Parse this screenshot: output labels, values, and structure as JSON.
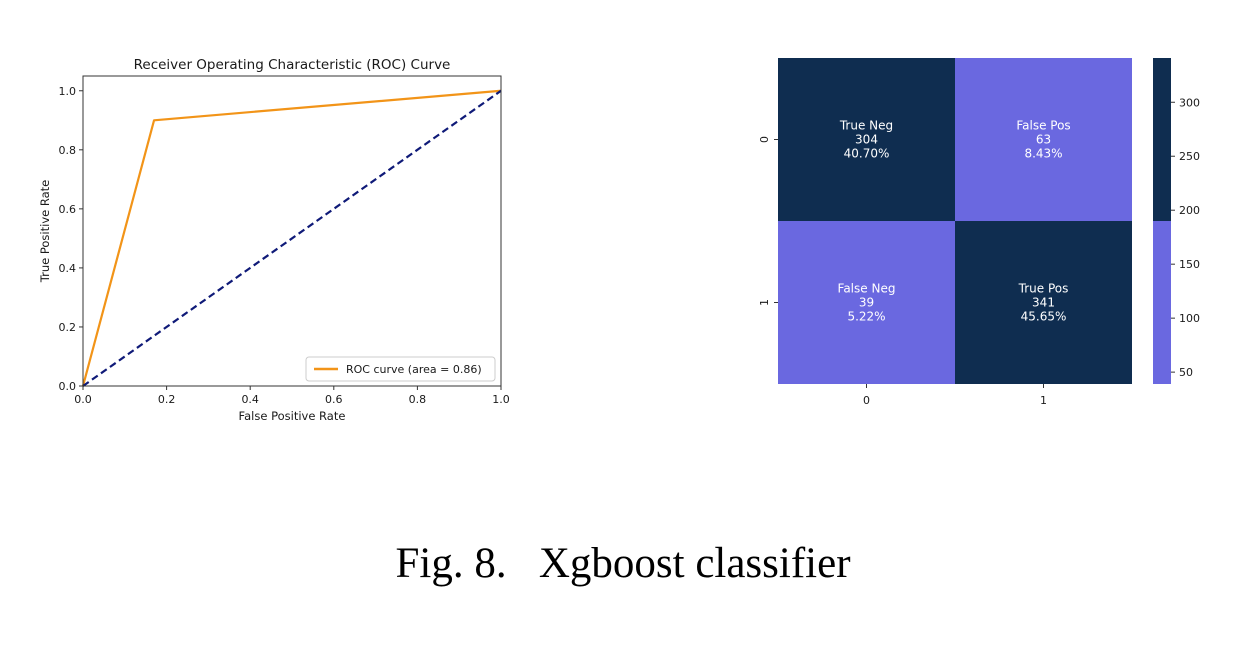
{
  "chart_data": [
    {
      "type": "line",
      "title": "Receiver Operating Characteristic (ROC) Curve",
      "xlabel": "False Positive Rate",
      "ylabel": "True Positive Rate",
      "xlim": [
        0,
        1
      ],
      "ylim": [
        0,
        1.05
      ],
      "xticks": [
        0,
        0.2,
        0.4,
        0.6,
        0.8,
        1.0
      ],
      "xtick_labels": [
        "0.0",
        "0.2",
        "0.4",
        "0.6",
        "0.8",
        "1.0"
      ],
      "yticks": [
        0,
        0.2,
        0.4,
        0.6,
        0.8,
        1.0
      ],
      "ytick_labels": [
        "0.0",
        "0.2",
        "0.4",
        "0.6",
        "0.8",
        "1.0"
      ],
      "grid": false,
      "legend_position": "lower-right",
      "series": [
        {
          "name": "ROC curve (area = 0.86)",
          "color": "#f29418",
          "style": "solid",
          "x": [
            0.0,
            0.17,
            1.0
          ],
          "y": [
            0.0,
            0.9,
            1.0
          ]
        },
        {
          "color": "#0f1a78",
          "style": "dashed",
          "x": [
            0.0,
            1.0
          ],
          "y": [
            0.0,
            1.0
          ]
        }
      ]
    },
    {
      "type": "heatmap",
      "x_categories": [
        "0",
        "1"
      ],
      "y_categories": [
        "0",
        "1"
      ],
      "cells": [
        [
          {
            "label": "True Neg",
            "count": 304,
            "count_text": "304",
            "percent": "40.70%"
          },
          {
            "label": "False Pos",
            "count": 63,
            "count_text": "63",
            "percent": "8.43%"
          }
        ],
        [
          {
            "label": "False Neg",
            "count": 39,
            "count_text": "39",
            "percent": "5.22%"
          },
          {
            "label": "True Pos",
            "count": 341,
            "count_text": "341",
            "percent": "45.65%"
          }
        ]
      ],
      "colormap": {
        "low": "#6a68e0",
        "high": "#0f2d50",
        "threshold": 190
      },
      "colorbar": {
        "range": [
          39,
          341
        ],
        "ticks": [
          50,
          100,
          150,
          200,
          250,
          300
        ],
        "tick_labels": [
          "50",
          "100",
          "150",
          "200",
          "250",
          "300"
        ]
      }
    }
  ],
  "caption": "Fig. 8.   Xgboost classifier"
}
